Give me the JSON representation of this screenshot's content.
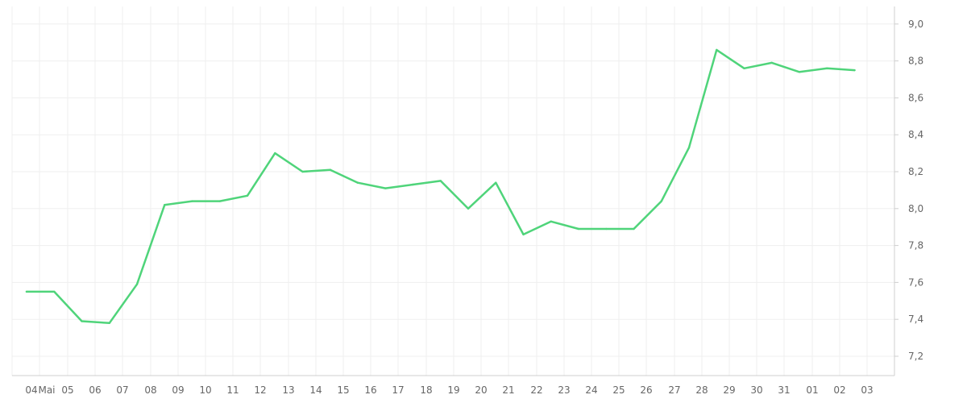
{
  "chart_data": {
    "type": "line",
    "title": "",
    "xlabel": "",
    "ylabel": "",
    "line_color": "#4fd47a",
    "grid": true,
    "ylim": [
      7.1,
      9.05
    ],
    "y_ticks": [
      "7,2",
      "7,4",
      "7,6",
      "7,8",
      "8,0",
      "8,2",
      "8,4",
      "8,6",
      "8,8",
      "9,0"
    ],
    "y_tick_values": [
      7.2,
      7.4,
      7.6,
      7.8,
      8.0,
      8.2,
      8.4,
      8.6,
      8.8,
      9.0
    ],
    "x_ticks": [
      "04",
      "Mai",
      "05",
      "06",
      "07",
      "08",
      "09",
      "10",
      "11",
      "12",
      "13",
      "14",
      "15",
      "16",
      "17",
      "18",
      "19",
      "20",
      "21",
      "22",
      "23",
      "24",
      "25",
      "26",
      "27",
      "28",
      "29",
      "30",
      "31",
      "01",
      "02",
      "03"
    ],
    "series": [
      {
        "values": [
          7.55,
          7.55,
          7.39,
          7.38,
          7.59,
          8.02,
          8.04,
          8.04,
          8.07,
          8.3,
          8.2,
          8.21,
          8.14,
          8.11,
          8.13,
          8.15,
          8.0,
          8.14,
          7.86,
          7.93,
          7.89,
          7.89,
          7.89,
          8.04,
          8.33,
          8.86,
          8.76,
          8.79,
          8.74,
          8.76,
          8.75
        ]
      }
    ]
  }
}
